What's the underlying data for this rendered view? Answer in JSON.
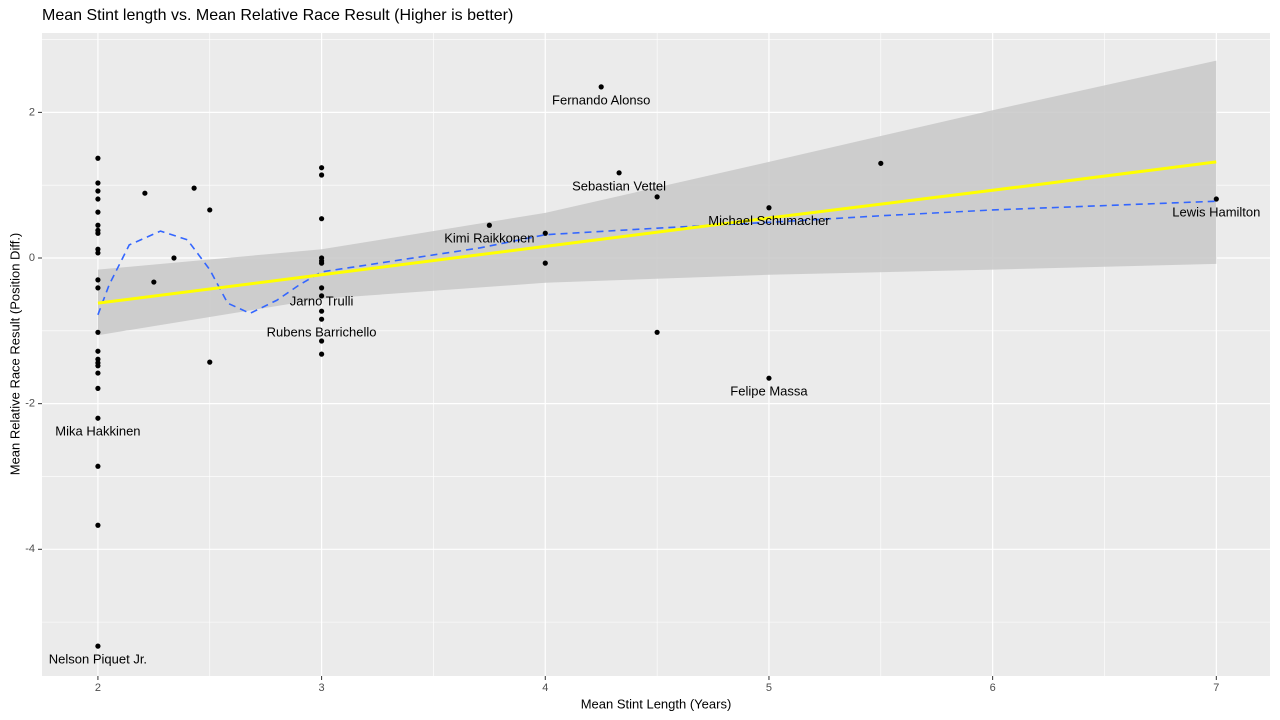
{
  "chart_data": {
    "type": "scatter",
    "title": "Mean Stint length vs. Mean Relative Race Result (Higher is better)",
    "x_label": "Mean Stint Length (Years)",
    "y_label": "Mean Relative Race Result (Position Diff.)",
    "xlim": [
      1.75,
      7.24
    ],
    "ylim": [
      -5.74,
      3.09
    ],
    "xticks": [
      2,
      3,
      4,
      5,
      6,
      7
    ],
    "yticks": [
      -4,
      -2,
      0,
      2
    ],
    "grid": true,
    "color": "#000000",
    "x": [
      2,
      2,
      2,
      2,
      2,
      2,
      2,
      2,
      2,
      2,
      2,
      2,
      2,
      2,
      2,
      2,
      2,
      2,
      2,
      2,
      2,
      2,
      2,
      2.21,
      2.25,
      2.34,
      2.43,
      2.5,
      2.5,
      3,
      3,
      3,
      3,
      3,
      3,
      3,
      3,
      3,
      3,
      3,
      3,
      3.75,
      4,
      4,
      4.25,
      4.33,
      4.5,
      4.5,
      5,
      5,
      5.5,
      7
    ],
    "values": [
      1.37,
      1.03,
      0.92,
      0.81,
      0.63,
      0.45,
      0.38,
      0.34,
      0.12,
      0.07,
      -0.3,
      -0.41,
      -1.02,
      -1.28,
      -1.39,
      -1.44,
      -1.48,
      -1.58,
      -1.79,
      -2.2,
      -2.86,
      -3.67,
      -5.33,
      0.89,
      -0.33,
      0,
      0.96,
      0.66,
      -1.43,
      1.24,
      1.14,
      0.54,
      0,
      -0.04,
      -0.07,
      -0.41,
      -0.52,
      -0.73,
      -0.84,
      -1.14,
      -1.32,
      0.45,
      0.34,
      -0.07,
      2.35,
      1.17,
      0.84,
      -1.02,
      0.69,
      -1.65,
      1.3,
      0.81
    ],
    "point_labels": [
      null,
      null,
      null,
      null,
      null,
      null,
      null,
      null,
      null,
      null,
      null,
      null,
      null,
      null,
      null,
      null,
      null,
      null,
      null,
      "Mika Hakkinen",
      null,
      null,
      "Nelson Piquet Jr.",
      null,
      null,
      null,
      null,
      null,
      null,
      null,
      null,
      null,
      null,
      null,
      null,
      "Jarno Trulli",
      null,
      null,
      "Rubens Barrichello",
      null,
      null,
      "Kimi Raikkonen",
      null,
      null,
      "Fernando Alonso",
      "Sebastian Vettel",
      null,
      null,
      "Michael Schumacher",
      "Felipe Massa",
      null,
      "Lewis Hamilton"
    ],
    "fit": {
      "color": "#ffff00",
      "band_color": "#c8c8c8",
      "x": [
        2,
        3,
        4,
        5,
        6,
        7
      ],
      "values": [
        -0.62,
        -0.23,
        0.16,
        0.55,
        0.93,
        1.32
      ],
      "lower": [
        -1.06,
        -0.56,
        -0.34,
        -0.23,
        -0.16,
        -0.08
      ],
      "upper": [
        -0.16,
        0.12,
        0.62,
        1.32,
        2.03,
        2.71
      ]
    },
    "smooth": {
      "color": "#3366ff",
      "x": [
        2,
        2.05,
        2.14,
        2.28,
        2.4,
        2.5,
        2.58,
        2.68,
        2.8,
        2.9,
        3,
        3.71,
        4,
        4.5,
        5,
        5.5,
        6,
        7
      ],
      "values": [
        -0.78,
        -0.37,
        0.18,
        0.37,
        0.25,
        -0.16,
        -0.62,
        -0.76,
        -0.58,
        -0.37,
        -0.19,
        0.14,
        0.32,
        0.41,
        0.49,
        0.58,
        0.66,
        0.78
      ]
    }
  }
}
